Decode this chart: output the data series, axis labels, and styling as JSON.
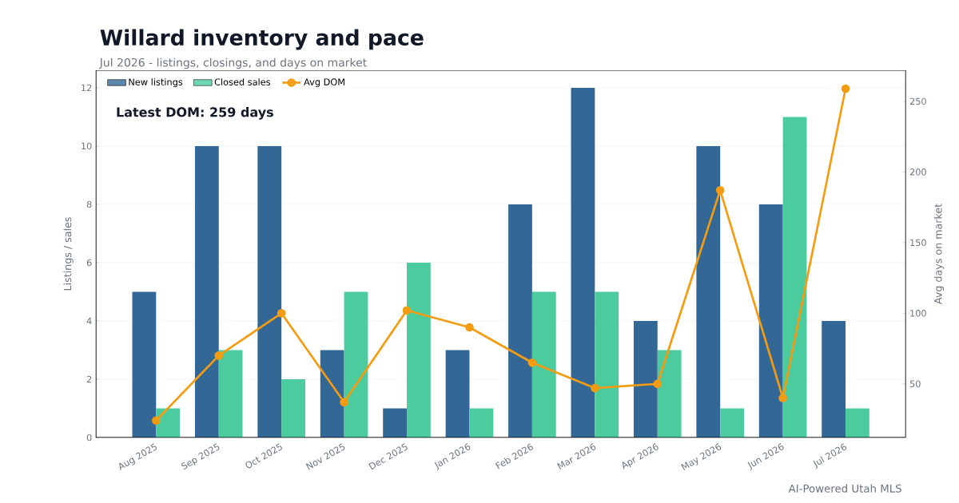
{
  "chart_data": {
    "type": "bar",
    "title": "Willard inventory and pace",
    "subtitle": "Jul 2026 - listings, closings, and days on market",
    "ylabel": "Listings / sales",
    "y2label": "Avg days on market",
    "categories": [
      "Aug 2025",
      "Sep 2025",
      "Oct 2025",
      "Nov 2025",
      "Dec 2025",
      "Jan 2026",
      "Feb 2026",
      "Mar 2026",
      "Apr 2026",
      "May 2026",
      "Jun 2026",
      "Jul 2026"
    ],
    "series": [
      {
        "name": "New listings",
        "color": "#336896",
        "values": [
          5,
          10,
          10,
          3,
          1,
          3,
          8,
          12,
          4,
          10,
          8,
          4
        ]
      },
      {
        "name": "Closed sales",
        "color": "#4bcb9e",
        "values": [
          1,
          3,
          2,
          5,
          6,
          1,
          5,
          5,
          3,
          1,
          11,
          1
        ]
      },
      {
        "name": "Avg DOM",
        "type": "line",
        "axis": "y2",
        "marker": "circle",
        "color": "#f39c12",
        "values": [
          24,
          70,
          100,
          37,
          102,
          90,
          65,
          47,
          50,
          187,
          40,
          259
        ]
      }
    ],
    "ylim": [
      0,
      12.6
    ],
    "yticks": [
      0,
      2,
      4,
      6,
      8,
      10,
      12
    ],
    "y2lim": [
      12,
      272
    ],
    "y2ticks": [
      50,
      100,
      150,
      200,
      250
    ],
    "grid": "y",
    "legend": "top left",
    "annotations": [
      "Latest DOM: 259 days",
      "AI-Powered Utah MLS"
    ]
  }
}
